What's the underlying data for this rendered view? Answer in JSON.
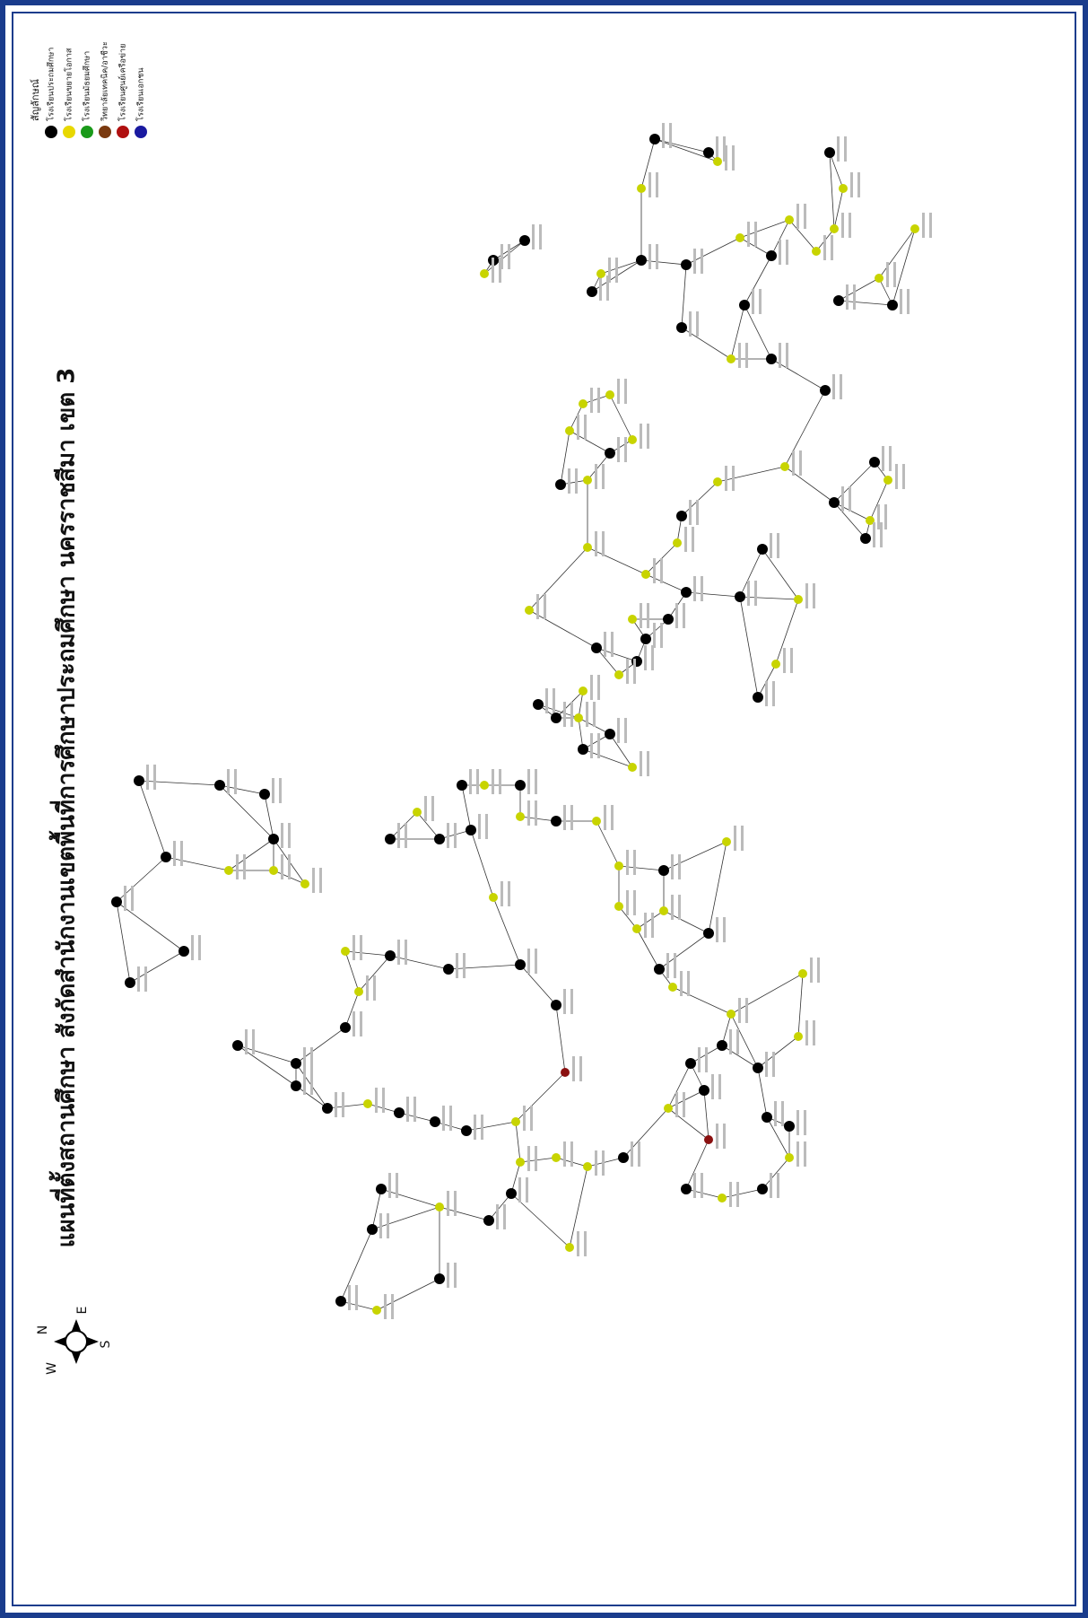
{
  "title": "แผนที่ตั้งสถานศึกษา สังกัดสำนักงานเขตพื้นที่การศึกษาประถมศึกษา นครราชสีมา เขต 3",
  "legend": {
    "title": "สัญลักษณ์",
    "items": [
      {
        "label": "โรงเรียนประถมศึกษา",
        "color": "#000000"
      },
      {
        "label": "โรงเรียนขยายโอกาส",
        "color": "#e8d800"
      },
      {
        "label": "โรงเรียนมัธยมศึกษา",
        "color": "#1a9a1a"
      },
      {
        "label": "วิทยาลัยเทคนิค/อาชีวะ",
        "color": "#7a3a10"
      },
      {
        "label": "โรงเรียนศูนย์เครือข่าย",
        "color": "#b01010"
      },
      {
        "label": "โรงเรียนเอกชน",
        "color": "#1a1aa0"
      }
    ]
  },
  "compass": {
    "n": "N",
    "e": "E",
    "s": "S",
    "w": "W"
  }
}
